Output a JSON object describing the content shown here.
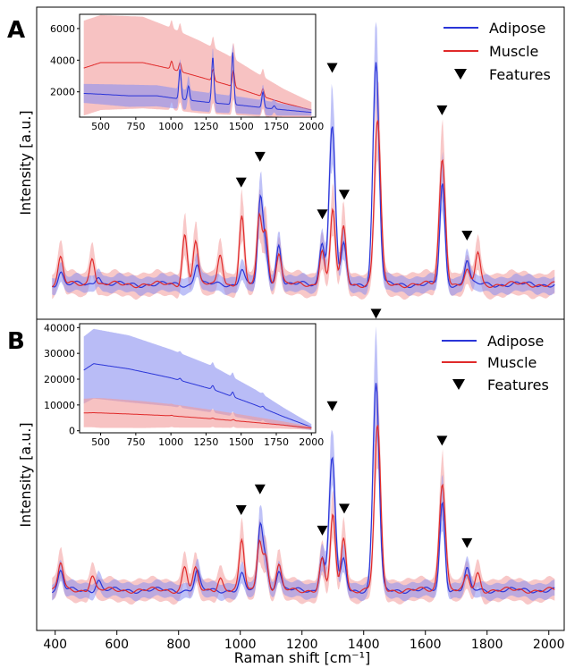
{
  "chart_data": [
    {
      "panel": "A",
      "type": "line",
      "ylabel": "Intensity [a.u.]",
      "legend": {
        "placement": "top-right",
        "entries": [
          "Adipose",
          "Muscle",
          "Features"
        ]
      },
      "series": [
        {
          "name": "Adipose",
          "color": "#2a35d8",
          "band_color": "#8a8ff0",
          "peaks": [
            [
              418,
              0.35
            ],
            [
              540,
              0.28
            ],
            [
              860,
              0.6
            ],
            [
              1005,
              0.45
            ],
            [
              1065,
              2.3
            ],
            [
              1082,
              1.0
            ],
            [
              1125,
              1.15
            ],
            [
              1265,
              1.2
            ],
            [
              1298,
              4.4
            ],
            [
              1335,
              1.1
            ],
            [
              1440,
              6.2
            ],
            [
              1655,
              2.8
            ],
            [
              1735,
              0.7
            ]
          ]
        },
        {
          "name": "Muscle",
          "color": "#e02a2a",
          "band_color": "#f29a9a",
          "peaks": [
            [
              418,
              0.75
            ],
            [
              520,
              0.8
            ],
            [
              820,
              1.4
            ],
            [
              855,
              1.2
            ],
            [
              935,
              0.9
            ],
            [
              1005,
              1.85
            ],
            [
              1062,
              1.9
            ],
            [
              1082,
              1.5
            ],
            [
              1125,
              0.9
            ],
            [
              1265,
              1.0
            ],
            [
              1300,
              2.1
            ],
            [
              1335,
              1.6
            ],
            [
              1445,
              4.6
            ],
            [
              1655,
              3.5
            ],
            [
              1735,
              0.35
            ],
            [
              1770,
              0.9
            ]
          ]
        }
      ],
      "features_x": [
        1003,
        1064,
        1266,
        1298,
        1337,
        1440,
        1654,
        1735
      ],
      "inset": {
        "xlim": [
          350,
          2030
        ],
        "ylim": [
          400,
          6900
        ],
        "xticks": [
          500,
          750,
          1000,
          1250,
          1500,
          1750,
          2000
        ],
        "yticks": [
          2000,
          4000,
          6000
        ],
        "adipose_mean": [
          [
            380,
            1900
          ],
          [
            500,
            1850
          ],
          [
            700,
            1750
          ],
          [
            900,
            1750
          ],
          [
            1100,
            1500
          ],
          [
            1300,
            1300
          ],
          [
            1500,
            1150
          ],
          [
            1700,
            950
          ],
          [
            2000,
            700
          ]
        ],
        "adipose_band": [
          [
            380,
            600
          ],
          [
            700,
            700
          ],
          [
            1000,
            650
          ],
          [
            1300,
            600
          ],
          [
            1700,
            450
          ],
          [
            2000,
            200
          ]
        ],
        "muscle_mean": [
          [
            380,
            3500
          ],
          [
            500,
            3850
          ],
          [
            800,
            3850
          ],
          [
            1000,
            3450
          ],
          [
            1200,
            2950
          ],
          [
            1400,
            2450
          ],
          [
            1600,
            1850
          ],
          [
            1800,
            1300
          ],
          [
            2000,
            850
          ]
        ],
        "muscle_band": [
          [
            380,
            3000
          ],
          [
            500,
            3000
          ],
          [
            800,
            2900
          ],
          [
            1000,
            2600
          ],
          [
            1200,
            2300
          ],
          [
            1400,
            1900
          ],
          [
            1600,
            1400
          ],
          [
            1800,
            900
          ],
          [
            2000,
            500
          ]
        ],
        "adipose_peaks": [
          [
            1065,
            1900
          ],
          [
            1125,
            900
          ],
          [
            1298,
            2900
          ],
          [
            1440,
            3300
          ],
          [
            1655,
            1000
          ],
          [
            1735,
            200
          ]
        ],
        "muscle_peaks": [
          [
            1005,
            500
          ],
          [
            1065,
            550
          ],
          [
            1300,
            700
          ],
          [
            1445,
            1000
          ],
          [
            1655,
            500
          ]
        ]
      }
    },
    {
      "panel": "B",
      "type": "line",
      "ylabel": "Intensity [a.u.]",
      "xlabel": "Raman shift [cm⁻¹]",
      "xlim": [
        340,
        2050
      ],
      "xticks": [
        400,
        600,
        800,
        1000,
        1200,
        1400,
        1600,
        1800,
        2000
      ],
      "legend": {
        "placement": "top-right",
        "entries": [
          "Adipose",
          "Muscle",
          "Features"
        ]
      },
      "series": [
        {
          "name": "Adipose",
          "color": "#2a35d8",
          "band_color": "#8a8ff0",
          "peaks": [
            [
              418,
              0.55
            ],
            [
              540,
              0.3
            ],
            [
              860,
              0.55
            ],
            [
              1005,
              0.45
            ],
            [
              1065,
              1.9
            ],
            [
              1082,
              0.9
            ],
            [
              1125,
              0.6
            ],
            [
              1265,
              1.0
            ],
            [
              1298,
              3.9
            ],
            [
              1335,
              0.9
            ],
            [
              1440,
              6.1
            ],
            [
              1655,
              2.6
            ],
            [
              1735,
              0.6
            ]
          ]
        },
        {
          "name": "Muscle",
          "color": "#e02a2a",
          "band_color": "#f29a9a",
          "peaks": [
            [
              418,
              0.8
            ],
            [
              520,
              0.45
            ],
            [
              820,
              0.7
            ],
            [
              855,
              0.6
            ],
            [
              935,
              0.4
            ],
            [
              1005,
              1.45
            ],
            [
              1062,
              1.5
            ],
            [
              1082,
              1.0
            ],
            [
              1125,
              0.7
            ],
            [
              1265,
              0.9
            ],
            [
              1300,
              2.2
            ],
            [
              1335,
              1.6
            ],
            [
              1445,
              4.8
            ],
            [
              1655,
              3.2
            ],
            [
              1735,
              0.4
            ],
            [
              1770,
              0.5
            ]
          ]
        }
      ],
      "features_x": [
        1003,
        1064,
        1266,
        1298,
        1337,
        1440,
        1654,
        1735
      ],
      "inset": {
        "xlim": [
          350,
          2030
        ],
        "ylim": [
          -800,
          41500
        ],
        "xticks": [
          500,
          750,
          1000,
          1250,
          1500,
          1750,
          2000
        ],
        "yticks": [
          0,
          10000,
          20000,
          30000,
          40000
        ],
        "adipose_mean": [
          [
            380,
            23500
          ],
          [
            450,
            26000
          ],
          [
            700,
            24000
          ],
          [
            1000,
            20500
          ],
          [
            1300,
            16000
          ],
          [
            1600,
            10000
          ],
          [
            1800,
            5500
          ],
          [
            2000,
            1400
          ]
        ],
        "adipose_band": [
          [
            380,
            13000
          ],
          [
            450,
            13500
          ],
          [
            700,
            13000
          ],
          [
            1000,
            11000
          ],
          [
            1300,
            9000
          ],
          [
            1600,
            6000
          ],
          [
            1800,
            3500
          ],
          [
            2000,
            1200
          ]
        ],
        "muscle_mean": [
          [
            380,
            6900
          ],
          [
            450,
            7000
          ],
          [
            700,
            6500
          ],
          [
            1000,
            5800
          ],
          [
            1300,
            4600
          ],
          [
            1600,
            3200
          ],
          [
            1800,
            2200
          ],
          [
            2000,
            1000
          ]
        ],
        "muscle_band": [
          [
            380,
            5500
          ],
          [
            500,
            5800
          ],
          [
            800,
            5200
          ],
          [
            1100,
            4200
          ],
          [
            1400,
            3000
          ],
          [
            1700,
            1800
          ],
          [
            2000,
            600
          ]
        ],
        "adipose_peaks": [
          [
            1065,
            800
          ],
          [
            1298,
            1500
          ],
          [
            1440,
            1800
          ],
          [
            1655,
            700
          ]
        ],
        "muscle_peaks": [
          [
            1005,
            200
          ],
          [
            1298,
            300
          ],
          [
            1445,
            400
          ]
        ]
      }
    }
  ]
}
